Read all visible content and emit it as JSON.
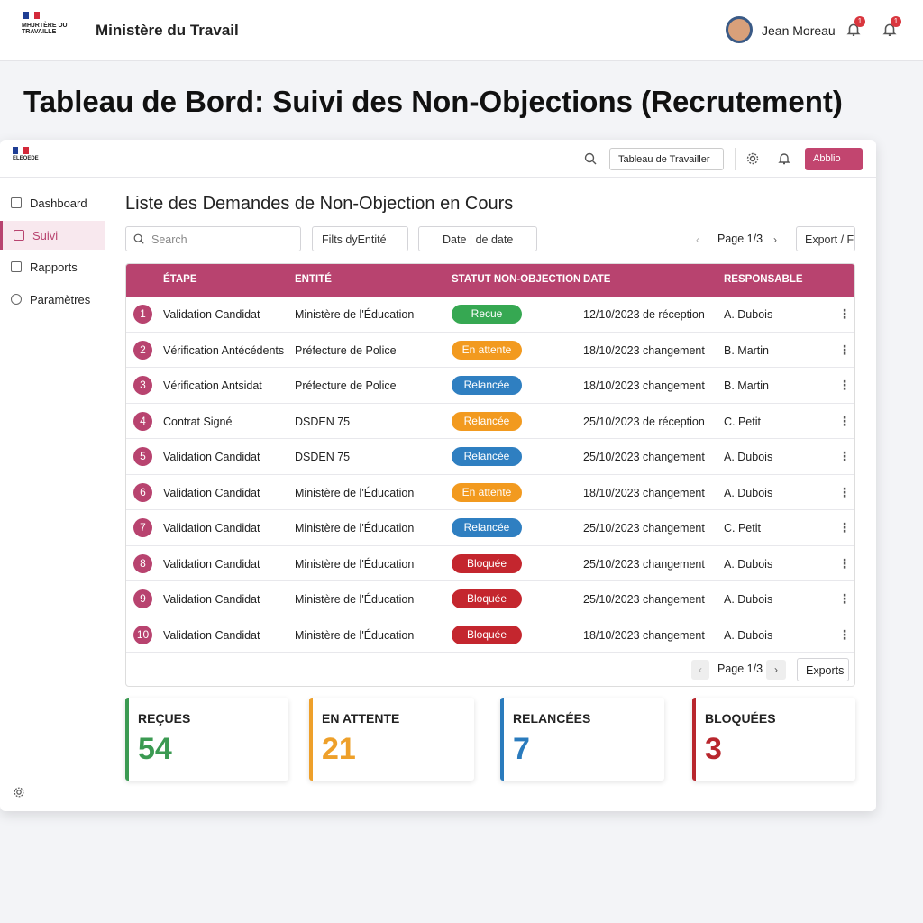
{
  "header": {
    "logo_text": "MHJRTÈRE DU TRAVAILLE",
    "title": "Ministère du Travail",
    "user": "Jean Moreau",
    "notifications": [
      1,
      1
    ]
  },
  "page_title": "Tableau de Bord: Suivi des Non-Objections (Recrutement)",
  "app": {
    "logo_text": "ELEOEDE",
    "workspace": "Tableau de Travailler",
    "button": "Abblio",
    "sidebar": [
      {
        "label": "Dashboard",
        "active": false
      },
      {
        "label": "Suivi",
        "active": true
      },
      {
        "label": "Rapports",
        "active": false
      },
      {
        "label": "Paramètres",
        "active": false
      }
    ],
    "heading": "Liste des Demandes de Non-Objection en Cours",
    "search_placeholder": "Search",
    "filters": [
      "Filts dyEntité",
      "Date ¦ de date"
    ],
    "pagination": "Page 1/3",
    "export": "Export / F",
    "table": {
      "header_color": "#b8436f",
      "columns": [
        "ÉTAPE",
        "ENTITÉ",
        "STATUT NON-OBJECTION",
        "DATE",
        "RESPONSABLE"
      ],
      "rows": [
        {
          "number": 1,
          "step": "Validation Candidat",
          "entity": "Ministère de l'Éducation",
          "status": "Recue",
          "status_color": "#36a852",
          "date": "12/10/2023 de réception",
          "owner": "A. Dubois"
        },
        {
          "number": 2,
          "step": "Vérification Antécédents",
          "entity": "Préfecture de Police",
          "status": "En attente",
          "status_color": "#f29a1f",
          "date": "18/10/2023 changement",
          "owner": "B. Martin"
        },
        {
          "number": 3,
          "step": "Vérification Antsidat",
          "entity": "Préfecture de Police",
          "status": "Relancée",
          "status_color": "#2f7fc1",
          "date": "18/10/2023 changement",
          "owner": "B. Martin"
        },
        {
          "number": 4,
          "step": "Contrat Signé",
          "entity": "DSDEN 75",
          "status": "Relancée",
          "status_color": "#f29a1f",
          "date": "25/10/2023 de réception",
          "owner": "C. Petit"
        },
        {
          "number": 5,
          "step": "Validation Candidat",
          "entity": "DSDEN 75",
          "status": "Relancée",
          "status_color": "#2f7fc1",
          "date": "25/10/2023 changement",
          "owner": "A. Dubois"
        },
        {
          "number": 6,
          "step": "Validation Candidat",
          "entity": "Ministère de l'Éducation",
          "status": "En attente",
          "status_color": "#f29a1f",
          "date": "18/10/2023 changement",
          "owner": "A. Dubois"
        },
        {
          "number": 7,
          "step": "Validation Candidat",
          "entity": "Ministère de l'Éducation",
          "status": "Relancée",
          "status_color": "#2f7fc1",
          "date": "25/10/2023 changement",
          "owner": "C. Petit"
        },
        {
          "number": 8,
          "step": "Validation Candidat",
          "entity": "Ministère de l'Éducation",
          "status": "Bloquée",
          "status_color": "#c4262e",
          "date": "25/10/2023 changement",
          "owner": "A. Dubois"
        },
        {
          "number": 9,
          "step": "Validation Candidat",
          "entity": "Ministère de l'Éducation",
          "status": "Bloquée",
          "status_color": "#c4262e",
          "date": "25/10/2023 changement",
          "owner": "A. Dubois"
        },
        {
          "number": 10,
          "step": "Validation Candidat",
          "entity": "Ministère de l'Éducation",
          "status": "Bloquée",
          "status_color": "#c4262e",
          "date": "18/10/2023 changement",
          "owner": "A. Dubois"
        }
      ]
    },
    "footer": {
      "pagination": "Page 1/3",
      "export": "Exports"
    },
    "stats": [
      {
        "label": "REÇUES",
        "value": 54,
        "color": "#3b9a52"
      },
      {
        "label": "EN ATTENTE",
        "value": 21,
        "color": "#eea02a"
      },
      {
        "label": "RELANCÉES",
        "value": 7,
        "color": "#2a7bbd"
      },
      {
        "label": "BLOQUÉES",
        "value": 3,
        "color": "#b8262d"
      }
    ]
  }
}
